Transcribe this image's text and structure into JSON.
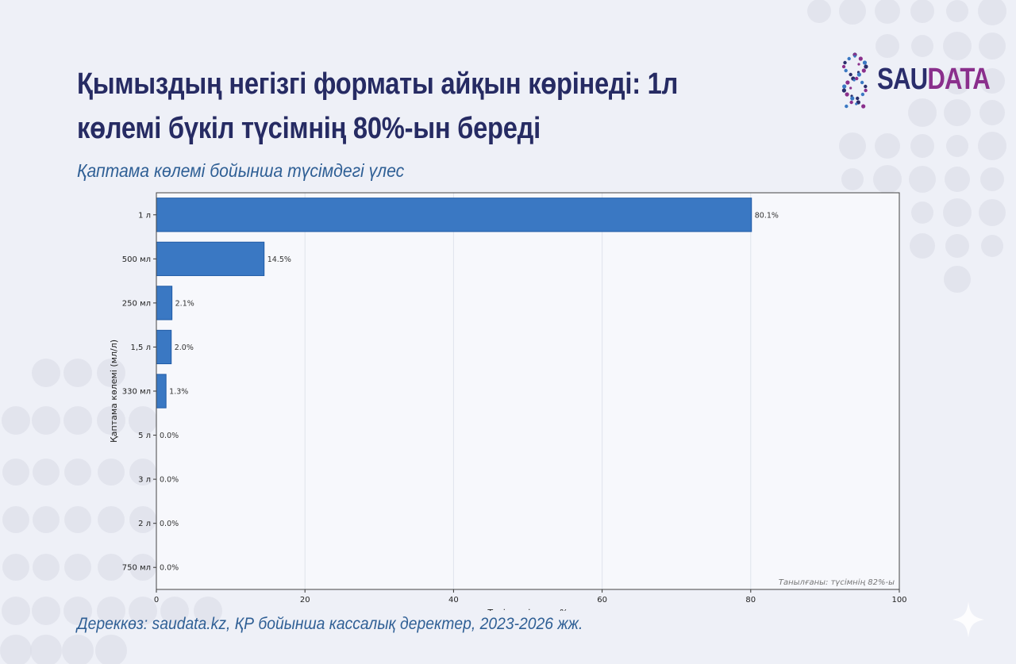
{
  "page": {
    "title_line1": "Қымыздың негізгі форматы айқын көрінеді: 1л",
    "title_line2": "көлемі бүкіл түсімнің 80%-ын береді",
    "subtitle": "Қаптама көлемі бойынша түсімдегі үлес",
    "source": "Дереккөз: saudata.kz, ҚР бойынша кассалық деректер, 2023-2026 жж."
  },
  "logo": {
    "part1": "SAU",
    "part2": "DATA",
    "color1": "#2a2d6b",
    "color2": "#8a2f8c"
  },
  "colors": {
    "bar": "#3a78c3",
    "bar_edge": "#1f5aa6",
    "title": "#262b63",
    "accent_text": "#2f5f95"
  },
  "chart_data": {
    "type": "bar",
    "orientation": "horizontal",
    "categories": [
      "1 л",
      "500 мл",
      "250 мл",
      "1,5 л",
      "330 мл",
      "5 л",
      "3 л",
      "2 л",
      "750 мл"
    ],
    "values": [
      80.1,
      14.5,
      2.1,
      2.0,
      1.3,
      0.0,
      0.0,
      0.0,
      0.0
    ],
    "value_labels": [
      "80.1%",
      "14.5%",
      "2.1%",
      "2.0%",
      "1.3%",
      "0.0%",
      "0.0%",
      "0.0%",
      "0.0%"
    ],
    "xlabel": "Түсімдегі үлес, %",
    "ylabel": "Қаптама көлемі (мл/л)",
    "xlim": [
      0,
      100
    ],
    "xticks": [
      0,
      20,
      40,
      60,
      80,
      100
    ],
    "grid": "vertical",
    "annotation": "Танылғаны: түсімнің 82%-ы",
    "annotation_position": "bottom-right"
  }
}
